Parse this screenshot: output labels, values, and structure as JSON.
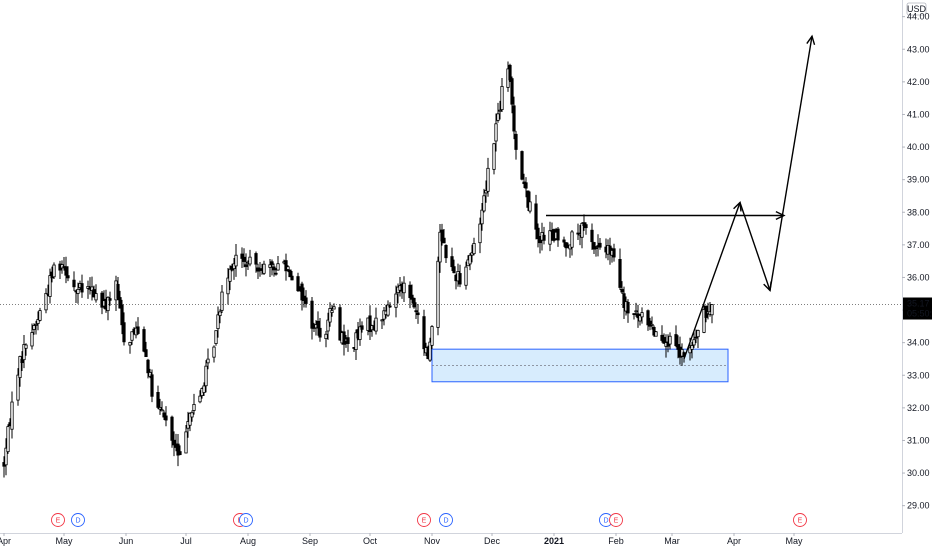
{
  "chart_data": {
    "type": "candlestick",
    "currency": "USD",
    "y_ticks": [
      "29.00",
      "30.00",
      "31.00",
      "32.00",
      "33.00",
      "34.00",
      "35.00",
      "36.00",
      "37.00",
      "38.00",
      "39.00",
      "40.00",
      "41.00",
      "42.00",
      "43.00",
      "44.00"
    ],
    "ylim": [
      28.75,
      44.4
    ],
    "x_labels": [
      {
        "label": "Apr",
        "d": 0
      },
      {
        "label": "May",
        "d": 30
      },
      {
        "label": "Jun",
        "d": 61
      },
      {
        "label": "Jul",
        "d": 91
      },
      {
        "label": "Aug",
        "d": 122
      },
      {
        "label": "Sep",
        "d": 153
      },
      {
        "label": "Oct",
        "d": 183
      },
      {
        "label": "Nov",
        "d": 214
      },
      {
        "label": "Dec",
        "d": 244
      },
      {
        "label": "2021",
        "d": 275,
        "bold": true
      },
      {
        "label": "Feb",
        "d": 306
      },
      {
        "label": "Mar",
        "d": 334
      },
      {
        "label": "Apr",
        "d": 365
      },
      {
        "label": "May",
        "d": 395
      }
    ],
    "last_price": "35.17",
    "last_value": 35.17,
    "countdown": "05:50:4",
    "events": [
      {
        "type": "E",
        "d": 27,
        "color": "#f23645"
      },
      {
        "type": "D",
        "d": 37,
        "color": "#2962ff"
      },
      {
        "type": "E",
        "d": 118,
        "color": "#f23645"
      },
      {
        "type": "D",
        "d": 121,
        "color": "#2962ff"
      },
      {
        "type": "E",
        "d": 210,
        "color": "#f23645"
      },
      {
        "type": "D",
        "d": 221,
        "color": "#2962ff"
      },
      {
        "type": "D",
        "d": 301,
        "color": "#2962ff"
      },
      {
        "type": "E",
        "d": 306,
        "color": "#f23645"
      },
      {
        "type": "E",
        "d": 398,
        "color": "#f23645"
      }
    ],
    "anchors": [
      {
        "d": 0,
        "v": 30.3
      },
      {
        "d": 6,
        "v": 33.0
      },
      {
        "d": 12,
        "v": 34.2
      },
      {
        "d": 16,
        "v": 34.6
      },
      {
        "d": 20,
        "v": 35.3
      },
      {
        "d": 26,
        "v": 36.5
      },
      {
        "d": 30,
        "v": 36.4
      },
      {
        "d": 36,
        "v": 35.6
      },
      {
        "d": 44,
        "v": 35.6
      },
      {
        "d": 50,
        "v": 35.1
      },
      {
        "d": 56,
        "v": 35.7
      },
      {
        "d": 61,
        "v": 33.8
      },
      {
        "d": 64,
        "v": 34.3
      },
      {
        "d": 68,
        "v": 34.5
      },
      {
        "d": 72,
        "v": 33.3
      },
      {
        "d": 75,
        "v": 32.0
      },
      {
        "d": 80,
        "v": 31.8
      },
      {
        "d": 84,
        "v": 31.0
      },
      {
        "d": 88,
        "v": 30.4
      },
      {
        "d": 92,
        "v": 31.8
      },
      {
        "d": 97,
        "v": 32.1
      },
      {
        "d": 102,
        "v": 33.3
      },
      {
        "d": 106,
        "v": 34.3
      },
      {
        "d": 110,
        "v": 36.0
      },
      {
        "d": 116,
        "v": 36.6
      },
      {
        "d": 122,
        "v": 36.4
      },
      {
        "d": 128,
        "v": 36.4
      },
      {
        "d": 134,
        "v": 36.2
      },
      {
        "d": 140,
        "v": 36.5
      },
      {
        "d": 146,
        "v": 35.9
      },
      {
        "d": 150,
        "v": 35.3
      },
      {
        "d": 154,
        "v": 34.6
      },
      {
        "d": 160,
        "v": 34.2
      },
      {
        "d": 164,
        "v": 35.1
      },
      {
        "d": 168,
        "v": 34.3
      },
      {
        "d": 172,
        "v": 33.9
      },
      {
        "d": 176,
        "v": 34.1
      },
      {
        "d": 180,
        "v": 34.5
      },
      {
        "d": 186,
        "v": 34.6
      },
      {
        "d": 190,
        "v": 34.9
      },
      {
        "d": 194,
        "v": 35.2
      },
      {
        "d": 198,
        "v": 35.9
      },
      {
        "d": 202,
        "v": 35.5
      },
      {
        "d": 206,
        "v": 35.0
      },
      {
        "d": 209,
        "v": 34.0
      },
      {
        "d": 212,
        "v": 33.6
      },
      {
        "d": 214,
        "v": 34.5
      },
      {
        "d": 216,
        "v": 35.6
      },
      {
        "d": 218,
        "v": 37.5
      },
      {
        "d": 220,
        "v": 37.0
      },
      {
        "d": 224,
        "v": 36.2
      },
      {
        "d": 228,
        "v": 36.0
      },
      {
        "d": 232,
        "v": 36.6
      },
      {
        "d": 236,
        "v": 37.0
      },
      {
        "d": 240,
        "v": 38.5
      },
      {
        "d": 244,
        "v": 40.0
      },
      {
        "d": 248,
        "v": 41.3
      },
      {
        "d": 251,
        "v": 42.5
      },
      {
        "d": 253,
        "v": 42.0
      },
      {
        "d": 256,
        "v": 40.0
      },
      {
        "d": 260,
        "v": 38.8
      },
      {
        "d": 264,
        "v": 37.9
      },
      {
        "d": 268,
        "v": 37.2
      },
      {
        "d": 274,
        "v": 37.3
      },
      {
        "d": 280,
        "v": 37.0
      },
      {
        "d": 286,
        "v": 37.3
      },
      {
        "d": 290,
        "v": 37.5
      },
      {
        "d": 294,
        "v": 37.0
      },
      {
        "d": 300,
        "v": 36.9
      },
      {
        "d": 304,
        "v": 36.7
      },
      {
        "d": 307,
        "v": 36.0
      },
      {
        "d": 310,
        "v": 35.1
      },
      {
        "d": 316,
        "v": 34.8
      },
      {
        "d": 322,
        "v": 34.7
      },
      {
        "d": 326,
        "v": 34.3
      },
      {
        "d": 330,
        "v": 34.2
      },
      {
        "d": 334,
        "v": 33.9
      },
      {
        "d": 338,
        "v": 33.6
      },
      {
        "d": 342,
        "v": 33.6
      },
      {
        "d": 346,
        "v": 34.2
      },
      {
        "d": 350,
        "v": 34.8
      },
      {
        "d": 354,
        "v": 35.17
      }
    ],
    "zone": {
      "d1": 214,
      "d2": 362,
      "top": 33.8,
      "bottom": 32.8,
      "mid": 33.3
    },
    "resistance_arrow": {
      "d1": 271,
      "d2": 390,
      "v": 37.9
    },
    "path_arrow": [
      {
        "d": 340,
        "v": 33.5
      },
      {
        "d": 368,
        "v": 38.3
      },
      {
        "d": 383,
        "v": 35.6
      },
      {
        "d": 404,
        "v": 43.4
      }
    ]
  }
}
